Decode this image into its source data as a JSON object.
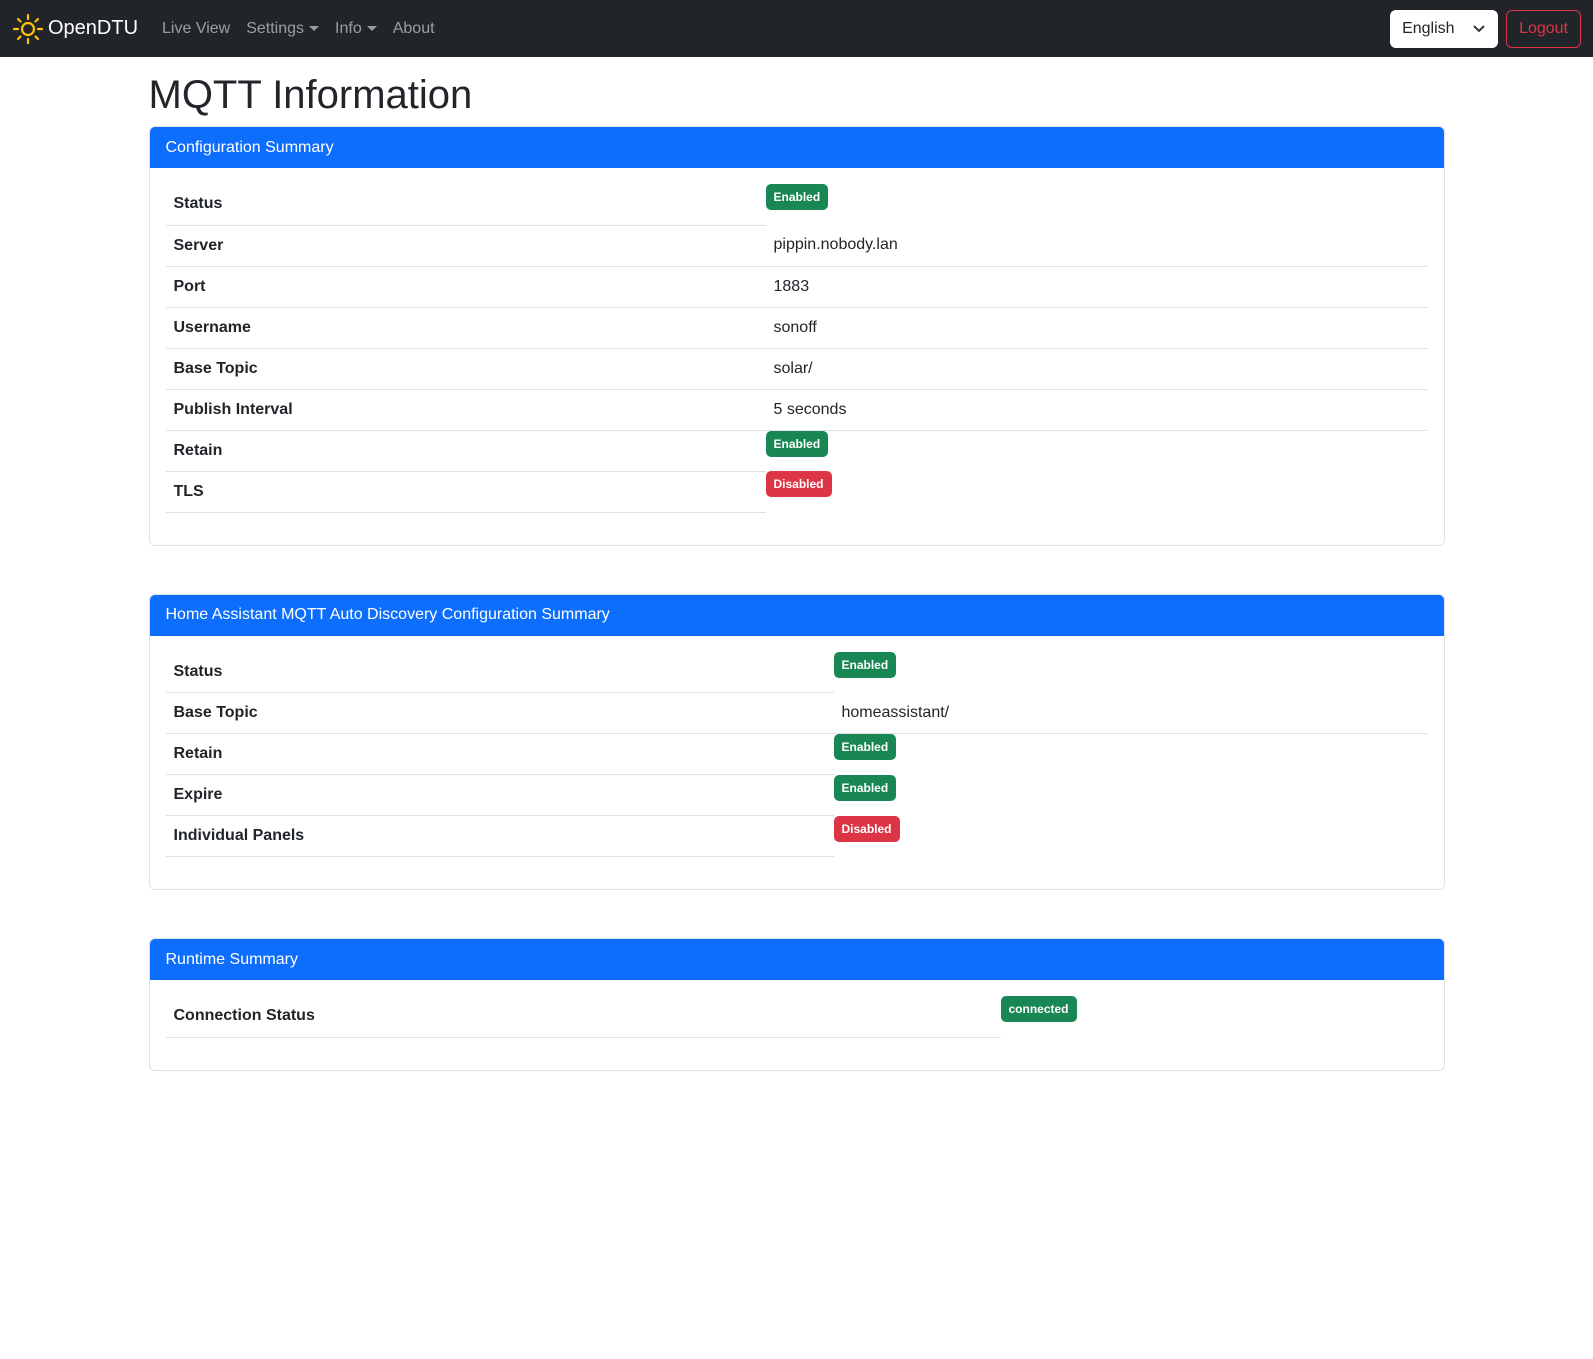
{
  "nav": {
    "brand": "OpenDTU",
    "items": [
      {
        "label": "Live View",
        "dropdown": false
      },
      {
        "label": "Settings",
        "dropdown": true
      },
      {
        "label": "Info",
        "dropdown": true
      },
      {
        "label": "About",
        "dropdown": false
      }
    ],
    "language": "English",
    "logout": "Logout"
  },
  "page": {
    "title": "MQTT Information"
  },
  "config": {
    "title": "Configuration Summary",
    "rows": [
      {
        "label": "Status",
        "badge": "Enabled",
        "color": "green"
      },
      {
        "label": "Server",
        "value": "pippin.nobody.lan"
      },
      {
        "label": "Port",
        "value": "1883"
      },
      {
        "label": "Username",
        "value": "sonoff"
      },
      {
        "label": "Base Topic",
        "value": "solar/"
      },
      {
        "label": "Publish Interval",
        "value": "5 seconds"
      },
      {
        "label": "Retain",
        "badge": "Enabled",
        "color": "green"
      },
      {
        "label": "TLS",
        "badge": "Disabled",
        "color": "red"
      }
    ]
  },
  "ha": {
    "title": "Home Assistant MQTT Auto Discovery Configuration Summary",
    "rows": [
      {
        "label": "Status",
        "badge": "Enabled",
        "color": "green"
      },
      {
        "label": "Base Topic",
        "value": "homeassistant/"
      },
      {
        "label": "Retain",
        "badge": "Enabled",
        "color": "green"
      },
      {
        "label": "Expire",
        "badge": "Enabled",
        "color": "green"
      },
      {
        "label": "Individual Panels",
        "badge": "Disabled",
        "color": "red"
      }
    ]
  },
  "runtime": {
    "title": "Runtime Summary",
    "rows": [
      {
        "label": "Connection Status",
        "badge": "connected",
        "color": "green"
      }
    ]
  }
}
